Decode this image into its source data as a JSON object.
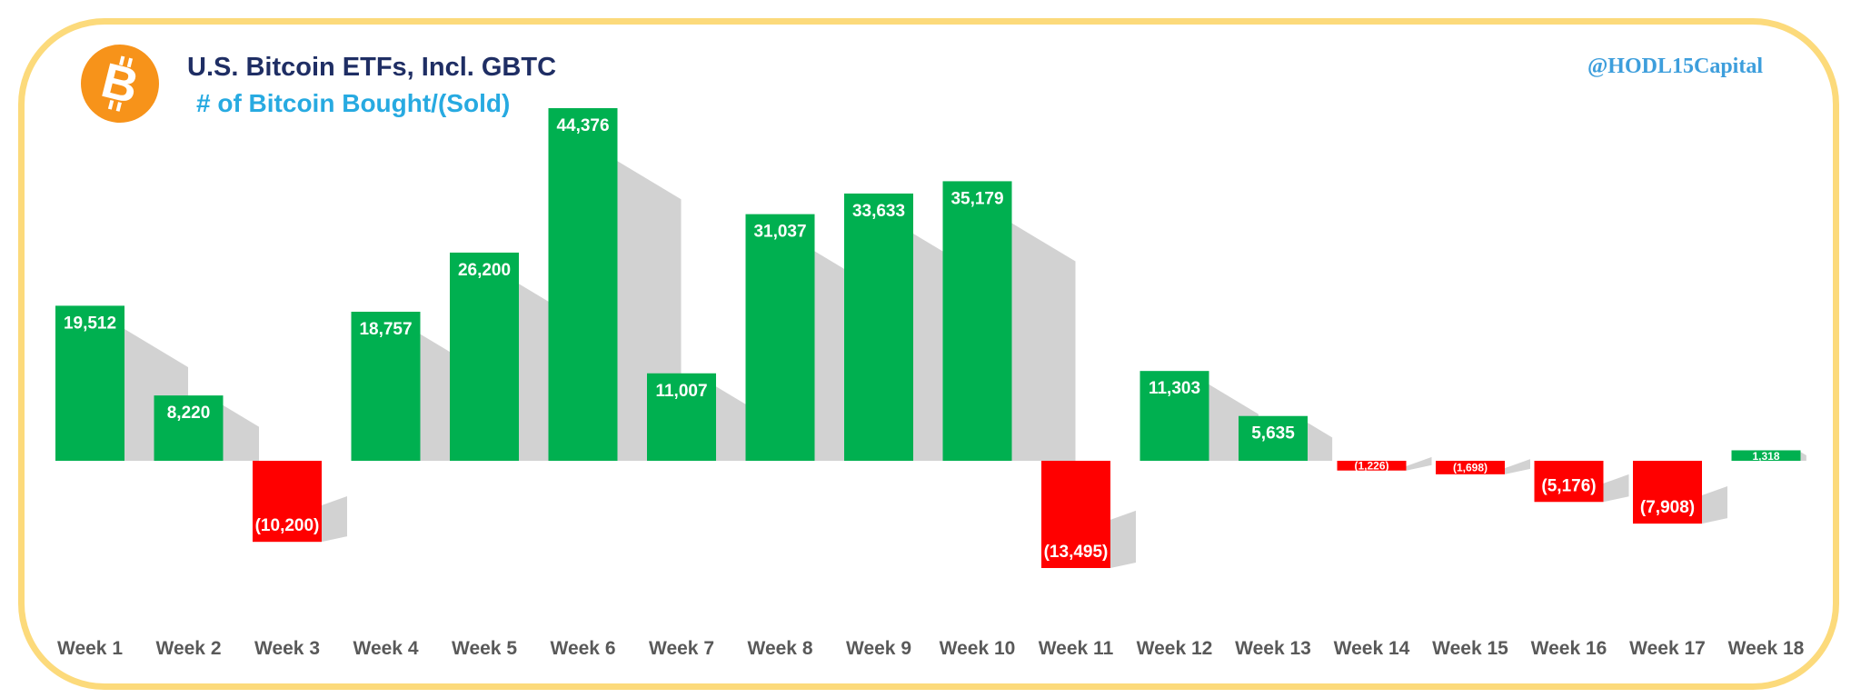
{
  "header": {
    "title": "U.S. Bitcoin ETFs, Incl. GBTC",
    "subtitle": "# of Bitcoin Bought/(Sold)",
    "handle": "@HODL15Capital",
    "logo_glyph": "B",
    "logo_icon": "bitcoin-logo-icon"
  },
  "colors": {
    "positive": "#00B050",
    "negative": "#FF0000",
    "border": "#FCDA7B",
    "logo": "#F7931A",
    "title": "#1F2E64",
    "subtitle": "#27AAE1",
    "handle": "#3D9EDC"
  },
  "chart_data": {
    "type": "bar",
    "title": "U.S. Bitcoin ETFs, Incl. GBTC",
    "subtitle": "# of Bitcoin Bought/(Sold)",
    "xlabel": "",
    "ylabel": "",
    "grid": false,
    "legend": "none",
    "categories": [
      "Week 1",
      "Week 2",
      "Week 3",
      "Week 4",
      "Week 5",
      "Week 6",
      "Week 7",
      "Week 8",
      "Week 9",
      "Week 10",
      "Week 11",
      "Week 12",
      "Week 13",
      "Week 14",
      "Week 15",
      "Week 16",
      "Week 17",
      "Week 18"
    ],
    "values": [
      19512,
      8220,
      -10200,
      18757,
      26200,
      44376,
      11007,
      31037,
      33633,
      35179,
      -13495,
      11303,
      5635,
      -1226,
      -1698,
      -5176,
      -7908,
      1318
    ],
    "labels": [
      "19,512",
      "8,220",
      "(10,200)",
      "18,757",
      "26,200",
      "44,376",
      "11,007",
      "31,037",
      "33,633",
      "35,179",
      "(13,495)",
      "11,303",
      "5,635",
      "(1,226)",
      "(1,698)",
      "(5,176)",
      "(7,908)",
      "1,318"
    ],
    "ylim": [
      -13495,
      44376
    ]
  }
}
